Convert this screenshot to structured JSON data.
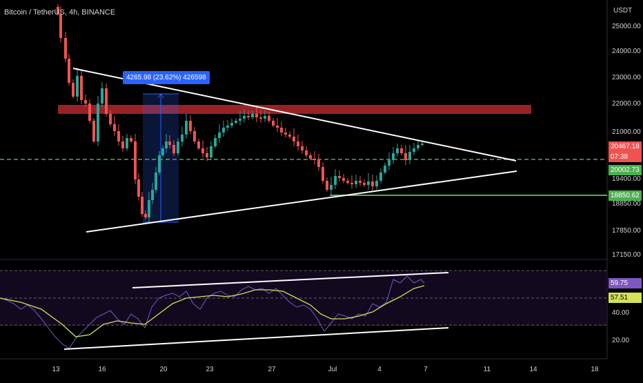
{
  "header": {
    "title": "Bitcoin / TetherUS, 4h, BINANCE"
  },
  "price_axis": {
    "currency": "USDT",
    "ticks": [
      "25000.00",
      "24000.00",
      "23000.00",
      "22000.00",
      "21000.00",
      "19400.00",
      "18850.00",
      "17850.00",
      "17150.00"
    ]
  },
  "rsi_axis": {
    "ticks": [
      "40.00",
      "20.00"
    ]
  },
  "time_axis": {
    "ticks": [
      "13",
      "16",
      "20",
      "23",
      "27",
      "Jul",
      "4",
      "7",
      "11",
      "14",
      "18"
    ]
  },
  "tags": {
    "last_price": "20467.18",
    "countdown": "07:38",
    "dashed_level": "20002.73",
    "support_level": "18850.62",
    "rsi_value": "59.75",
    "rsi_ma": "57.51"
  },
  "measure": {
    "label": "4265.98 (23.62%) 426598"
  },
  "colors": {
    "up": "#26a69a",
    "down": "#ef5350",
    "resistance_zone": "#b2282d",
    "support_line": "#4caf50",
    "dashed_line": "#4caf50",
    "rsi_line": "#7e57c2",
    "rsi_ma": "#d4e157",
    "measure": "#2962ff"
  }
}
